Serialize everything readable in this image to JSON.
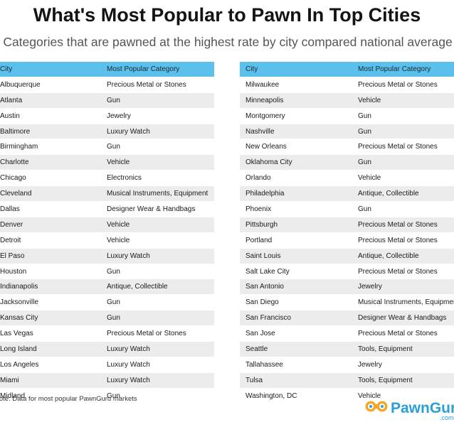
{
  "title": "What's Most Popular to Pawn In Top Cities",
  "subtitle": "Categories that are pawned at the highest rate by city compared national average",
  "headers": {
    "city": "City",
    "category": "Most Popular Category"
  },
  "left_rows": [
    [
      "Albuquerque",
      "Precious Metal or Stones"
    ],
    [
      "Atlanta",
      "Gun"
    ],
    [
      "Austin",
      "Jewelry"
    ],
    [
      "Baltimore",
      "Luxury Watch"
    ],
    [
      "Birmingham",
      "Gun"
    ],
    [
      "Charlotte",
      "Vehicle"
    ],
    [
      "Chicago",
      "Electronics"
    ],
    [
      "Cleveland",
      "Musical Instruments, Equipment"
    ],
    [
      "Dallas",
      "Designer Wear & Handbags"
    ],
    [
      "Denver",
      "Vehicle"
    ],
    [
      "Detroit",
      "Vehicle"
    ],
    [
      "El Paso",
      "Luxury Watch"
    ],
    [
      "Houston",
      "Gun"
    ],
    [
      "Indianapolis",
      "Antique, Collectible"
    ],
    [
      "Jacksonville",
      "Gun"
    ],
    [
      "Kansas City",
      "Gun"
    ],
    [
      "Las Vegas",
      "Precious Metal or Stones"
    ],
    [
      "Long Island",
      "Luxury Watch"
    ],
    [
      "Los Angeles",
      "Luxury Watch"
    ],
    [
      "Miami",
      "Luxury Watch"
    ],
    [
      "Midland",
      "Gun"
    ]
  ],
  "right_rows": [
    [
      "Milwaukee",
      "Precious Metal or Stones"
    ],
    [
      "Minneapolis",
      "Vehicle"
    ],
    [
      "Montgomery",
      "Gun"
    ],
    [
      "Nashville",
      "Gun"
    ],
    [
      "New Orleans",
      "Precious Metal or Stones"
    ],
    [
      "Oklahoma City",
      "Gun"
    ],
    [
      "Orlando",
      "Vehicle"
    ],
    [
      "Philadelphia",
      "Antique, Collectible"
    ],
    [
      "Phoenix",
      "Gun"
    ],
    [
      "Pittsburgh",
      "Precious Metal or Stones"
    ],
    [
      "Portland",
      "Precious Metal or Stones"
    ],
    [
      "Saint Louis",
      "Antique, Collectible"
    ],
    [
      "Salt Lake City",
      "Precious Metal or Stones"
    ],
    [
      "San Antonio",
      "Jewelry"
    ],
    [
      "San Diego",
      "Musical Instruments, Equipment"
    ],
    [
      "San Francisco",
      "Designer Wear & Handbags"
    ],
    [
      "San Jose",
      "Precious Metal or Stones"
    ],
    [
      "Seattle",
      "Tools, Equipment"
    ],
    [
      "Tallahassee",
      "Jewelry"
    ],
    [
      "Tulsa",
      "Tools, Equipment"
    ],
    [
      "Washington, DC",
      "Vehicle"
    ]
  ],
  "note": "Note: Data for most popular PawnGuru markets",
  "logo": {
    "text": "PawnGuru",
    "sub": ".com",
    "icon": "binoculars-icon",
    "color": "#2a9fd8"
  },
  "colors": {
    "header": "#5bc0eb",
    "stripe": "#ececec"
  }
}
